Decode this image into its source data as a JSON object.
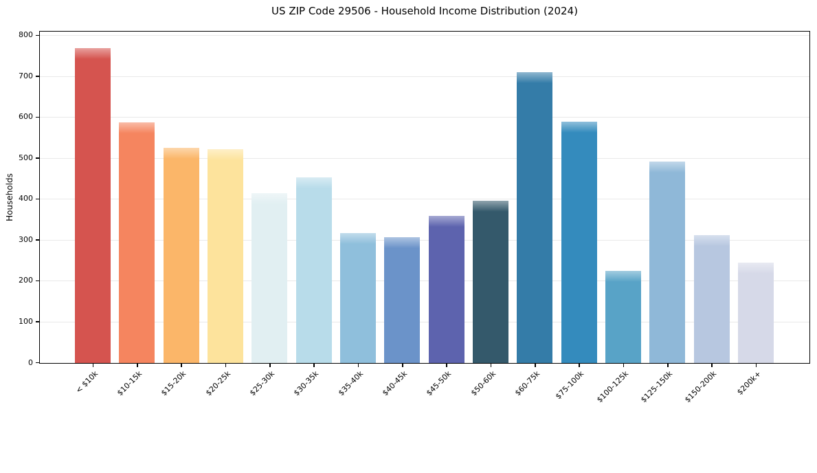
{
  "figure": {
    "title": "US ZIP Code 29506 - Household Income Distribution (2024)"
  },
  "chart_data": {
    "type": "bar",
    "title": "US ZIP Code 29506 - Household Income Distribution (2024)",
    "xlabel": "",
    "ylabel": "Households",
    "categories": [
      "< $10k",
      "$10-15k",
      "$15-20k",
      "$20-25k",
      "$25-30k",
      "$30-35k",
      "$35-40k",
      "$40-45k",
      "$45-50k",
      "$50-60k",
      "$60-75k",
      "$75-100k",
      "$100-125k",
      "$125-150k",
      "$150-200k",
      "$200k+"
    ],
    "values": [
      770,
      588,
      525,
      522,
      415,
      454,
      317,
      308,
      360,
      397,
      710,
      589,
      225,
      492,
      313,
      245
    ],
    "bar_colors": [
      "#d5544f",
      "#f5855f",
      "#fbb669",
      "#fde39c",
      "#e1eff2",
      "#b8dcea",
      "#8fbfdc",
      "#6b93c9",
      "#5d63ae",
      "#34596b",
      "#347ca8",
      "#348bbd",
      "#58a3c7",
      "#8fb8d8",
      "#b7c7e0",
      "#d6d9e8"
    ],
    "ylim": [
      0,
      808
    ],
    "yticks": [
      0,
      100,
      200,
      300,
      400,
      500,
      600,
      700,
      800
    ],
    "grid": "horizontal",
    "gridline_color": "#e9e9e9",
    "legend": "none",
    "background": "#ffffff"
  }
}
